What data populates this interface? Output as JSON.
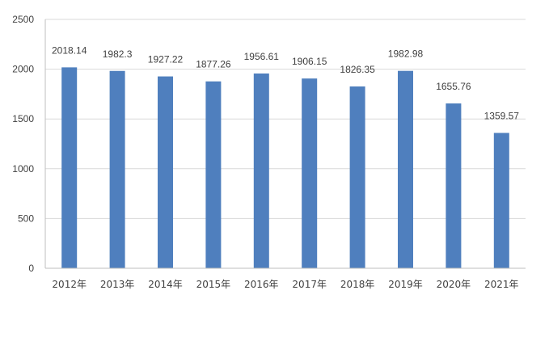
{
  "chart_data": {
    "type": "bar",
    "categories": [
      "2012年",
      "2013年",
      "2014年",
      "2015年",
      "2016年",
      "2017年",
      "2018年",
      "2019年",
      "2020年",
      "2021年"
    ],
    "values": [
      2018.14,
      1982.3,
      1927.22,
      1877.26,
      1956.61,
      1906.15,
      1826.35,
      1982.98,
      1655.76,
      1359.57
    ],
    "value_labels": [
      "2018.14",
      "1982.3",
      "1927.22",
      "1877.26",
      "1956.61",
      "1906.15",
      "1826.35",
      "1982.98",
      "1655.76",
      "1359.57"
    ],
    "ylim": [
      0,
      2500
    ],
    "yticks": [
      0,
      500,
      1000,
      1500,
      2000,
      2500
    ],
    "grid": true,
    "colors": {
      "bar": "#4f7fbe",
      "grid": "#d9d9d9",
      "axis": "#bfbfbf"
    }
  }
}
